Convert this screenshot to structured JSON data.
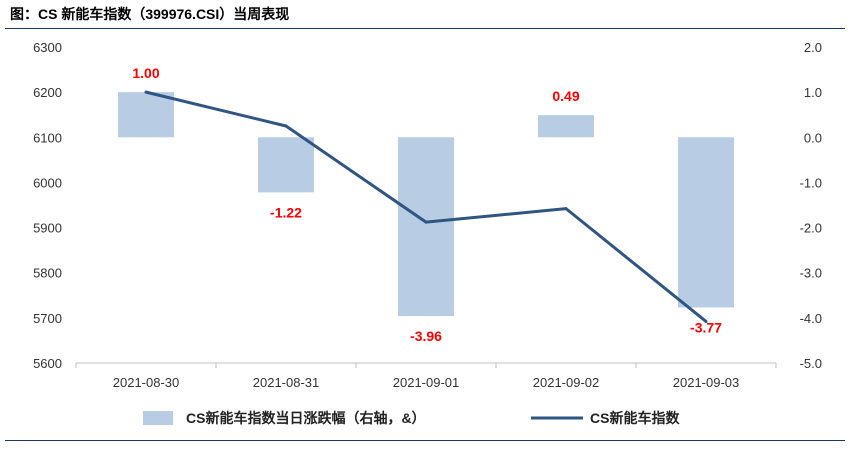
{
  "title": "图：CS 新能车指数（399976.CSI）当周表现",
  "chart_data": {
    "type": "bar+line",
    "categories": [
      "2021-08-30",
      "2021-08-31",
      "2021-09-01",
      "2021-09-02",
      "2021-09-03"
    ],
    "series": [
      {
        "name": "CS新能车指数当日涨跌幅（右轴，&）",
        "type": "bar",
        "axis": "right",
        "values": [
          1.0,
          -1.22,
          -3.96,
          0.49,
          -3.77
        ],
        "labels": [
          "1.00",
          "-1.22",
          "-3.96",
          "0.49",
          "-3.77"
        ],
        "color": "#b8cce4"
      },
      {
        "name": "CS新能车指数",
        "type": "line",
        "axis": "left",
        "values": [
          6200,
          6125,
          5912,
          5942,
          5692
        ],
        "color": "#2f5583"
      }
    ],
    "y_left": {
      "range": [
        5600,
        6300
      ],
      "ticks": [
        "6300",
        "6200",
        "6100",
        "6000",
        "5900",
        "5800",
        "5700",
        "5600"
      ]
    },
    "y_right": {
      "range": [
        -5.0,
        2.0
      ],
      "ticks": [
        "2.0",
        "1.0",
        "0.0",
        "-1.0",
        "-2.0",
        "-3.0",
        "-4.0",
        "-5.0"
      ]
    },
    "grid": false,
    "legend": "bottom"
  }
}
